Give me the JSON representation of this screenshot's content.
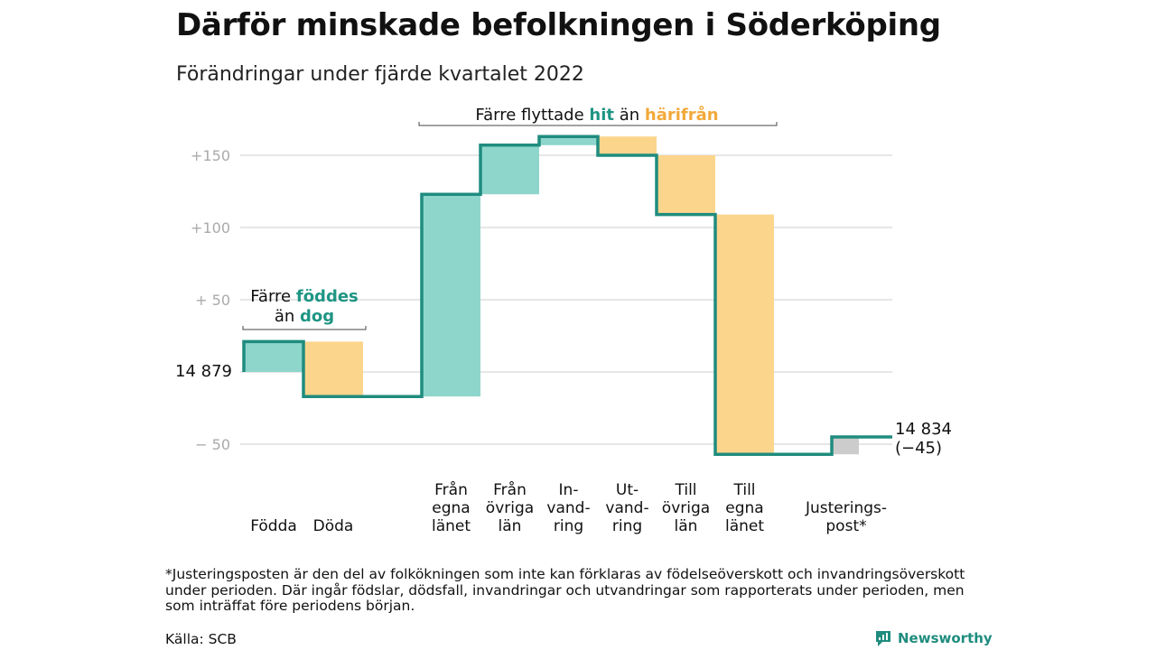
{
  "title": "Därför minskade befolkningen i Söderköping",
  "subtitle": "Förändringar under fjärde kvartalet 2022",
  "colors": {
    "increase": "#8ed6cc",
    "decrease": "#fcd58c",
    "adjustment": "#cccccc",
    "step_line": "#1f8c7e",
    "teal_text": "#1f9584",
    "orange_text": "#f2a93b",
    "grid": "#dddddd",
    "tick": "#aaaaaa"
  },
  "chart_data": {
    "type": "waterfall",
    "start_value": 14879,
    "start_label": "14 879",
    "end_value": 14834,
    "end_label": "14 834",
    "end_change_label": "(−45)",
    "y_ticks": [
      {
        "value": 150,
        "label": "+150"
      },
      {
        "value": 100,
        "label": "+100"
      },
      {
        "value": 50,
        "label": "+ 50"
      },
      {
        "value": 0,
        "label": ""
      },
      {
        "value": -50,
        "label": "− 50"
      }
    ],
    "ylim": [
      -60,
      165
    ],
    "grid": true,
    "steps": [
      {
        "label": [
          "Födda"
        ],
        "change": 21,
        "kind": "increase"
      },
      {
        "label": [
          "Döda"
        ],
        "change": -38,
        "kind": "decrease"
      },
      {
        "label": [
          "Från",
          "egna",
          "länet"
        ],
        "change": 140,
        "kind": "increase"
      },
      {
        "label": [
          "Från",
          "övriga",
          "län"
        ],
        "change": 34,
        "kind": "increase"
      },
      {
        "label": [
          "In-",
          "vand-",
          "ring"
        ],
        "change": 6,
        "kind": "increase"
      },
      {
        "label": [
          "Ut-",
          "vand-",
          "ring"
        ],
        "change": -13,
        "kind": "decrease"
      },
      {
        "label": [
          "Till",
          "övriga",
          "län"
        ],
        "change": -41,
        "kind": "decrease"
      },
      {
        "label": [
          "Till",
          "egna",
          "länet"
        ],
        "change": -166,
        "kind": "decrease"
      },
      {
        "label": [
          "Justerings-",
          "post*"
        ],
        "change": 12,
        "kind": "adjustment"
      }
    ],
    "annotations": [
      {
        "id": "births",
        "line1": [
          "Färre ",
          "föddes"
        ],
        "line2": [
          "än ",
          "dog"
        ]
      },
      {
        "id": "migration",
        "line1": [
          "Färre flyttade ",
          "hit",
          " än ",
          "härifrån"
        ]
      }
    ]
  },
  "footnote": "*Justeringsposten är den del av folkökningen som inte kan förklaras av födelseöverskott och invandringsöverskott under perioden. Där ingår födslar, dödsfall, invandringar och utvandringar som rapporterats under perioden, men som inträffat före periodens början.",
  "source": "Källa: SCB",
  "brand": "Newsworthy"
}
